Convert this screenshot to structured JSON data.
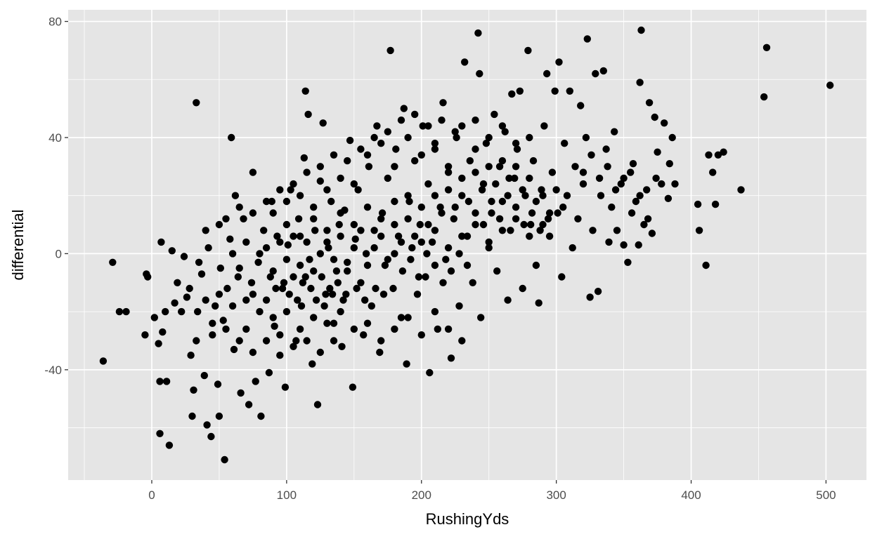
{
  "chart_data": {
    "type": "scatter",
    "title": "",
    "xlabel": "RushingYds",
    "ylabel": "differential",
    "xlim": [
      -62,
      530
    ],
    "ylim": [
      -78,
      84
    ],
    "x_ticks": [
      0,
      100,
      200,
      300,
      400,
      500
    ],
    "x_tick_labels": [
      "0",
      "100",
      "200",
      "300",
      "400",
      "500"
    ],
    "y_ticks": [
      -40,
      0,
      40,
      80
    ],
    "y_tick_labels": [
      "-40",
      "0",
      "40",
      "80"
    ],
    "grid": true,
    "legend": "none",
    "colors": {
      "panel": "#e5e5e5",
      "grid": "#ffffff",
      "point": "#000000",
      "tick_text": "#4d4d4d"
    },
    "points": [
      [
        -36,
        -37
      ],
      [
        -29,
        -3
      ],
      [
        -24,
        -20
      ],
      [
        -19,
        -20
      ],
      [
        -5,
        -28
      ],
      [
        -4,
        -7
      ],
      [
        -3,
        -8
      ],
      [
        2,
        -22
      ],
      [
        5,
        -31
      ],
      [
        6,
        -44
      ],
      [
        6,
        -62
      ],
      [
        7,
        4
      ],
      [
        8,
        -27
      ],
      [
        10,
        -20
      ],
      [
        11,
        -44
      ],
      [
        13,
        -66
      ],
      [
        15,
        1
      ],
      [
        17,
        -17
      ],
      [
        19,
        -10
      ],
      [
        22,
        -20
      ],
      [
        24,
        -1
      ],
      [
        26,
        -15
      ],
      [
        28,
        -12
      ],
      [
        29,
        -35
      ],
      [
        30,
        -56
      ],
      [
        31,
        -47
      ],
      [
        33,
        -30
      ],
      [
        34,
        -20
      ],
      [
        33,
        52
      ],
      [
        35,
        -3
      ],
      [
        37,
        -7
      ],
      [
        39,
        -42
      ],
      [
        41,
        -59
      ],
      [
        42,
        2
      ],
      [
        44,
        -63
      ],
      [
        45,
        -28
      ],
      [
        47,
        -18
      ],
      [
        49,
        -45
      ],
      [
        50,
        -56
      ],
      [
        51,
        -5
      ],
      [
        53,
        -23
      ],
      [
        54,
        -71
      ],
      [
        56,
        -12
      ],
      [
        58,
        5
      ],
      [
        59,
        40
      ],
      [
        61,
        -33
      ],
      [
        62,
        20
      ],
      [
        64,
        -8
      ],
      [
        66,
        -48
      ],
      [
        68,
        12
      ],
      [
        70,
        -26
      ],
      [
        72,
        -52
      ],
      [
        74,
        -10
      ],
      [
        75,
        28
      ],
      [
        77,
        -44
      ],
      [
        79,
        -3
      ],
      [
        81,
        -56
      ],
      [
        83,
        8
      ],
      [
        85,
        -16
      ],
      [
        87,
        -41
      ],
      [
        89,
        18
      ],
      [
        91,
        -25
      ],
      [
        93,
        6
      ],
      [
        95,
        -35
      ],
      [
        97,
        -12
      ],
      [
        99,
        -46
      ],
      [
        101,
        3
      ],
      [
        103,
        22
      ],
      [
        105,
        -8
      ],
      [
        107,
        -30
      ],
      [
        109,
        12
      ],
      [
        111,
        -18
      ],
      [
        113,
        33
      ],
      [
        114,
        56
      ],
      [
        116,
        48
      ],
      [
        117,
        -2
      ],
      [
        119,
        -38
      ],
      [
        121,
        8
      ],
      [
        123,
        -52
      ],
      [
        125,
        25
      ],
      [
        127,
        45
      ],
      [
        129,
        -14
      ],
      [
        131,
        2
      ],
      [
        133,
        18
      ],
      [
        135,
        -24
      ],
      [
        137,
        -6
      ],
      [
        139,
        10
      ],
      [
        141,
        -32
      ],
      [
        143,
        15
      ],
      [
        145,
        -3
      ],
      [
        147,
        39
      ],
      [
        149,
        -46
      ],
      [
        151,
        5
      ],
      [
        153,
        22
      ],
      [
        155,
        -10
      ],
      [
        157,
        -28
      ],
      [
        159,
        0
      ],
      [
        161,
        30
      ],
      [
        163,
        -18
      ],
      [
        165,
        8
      ],
      [
        167,
        44
      ],
      [
        169,
        -34
      ],
      [
        171,
        14
      ],
      [
        173,
        -4
      ],
      [
        175,
        26
      ],
      [
        177,
        70
      ],
      [
        179,
        -12
      ],
      [
        181,
        36
      ],
      [
        183,
        6
      ],
      [
        185,
        -22
      ],
      [
        187,
        50
      ],
      [
        189,
        -38
      ],
      [
        191,
        18
      ],
      [
        193,
        2
      ],
      [
        195,
        32
      ],
      [
        197,
        -14
      ],
      [
        199,
        10
      ],
      [
        201,
        44
      ],
      [
        203,
        -8
      ],
      [
        205,
        24
      ],
      [
        206,
        -41
      ],
      [
        208,
        4
      ],
      [
        210,
        36
      ],
      [
        212,
        -26
      ],
      [
        214,
        16
      ],
      [
        216,
        52
      ],
      [
        218,
        -2
      ],
      [
        220,
        28
      ],
      [
        222,
        -36
      ],
      [
        224,
        12
      ],
      [
        226,
        40
      ],
      [
        228,
        -18
      ],
      [
        230,
        20
      ],
      [
        232,
        66
      ],
      [
        234,
        6
      ],
      [
        236,
        32
      ],
      [
        238,
        -10
      ],
      [
        240,
        46
      ],
      [
        242,
        76
      ],
      [
        243,
        62
      ],
      [
        244,
        -22
      ],
      [
        246,
        24
      ],
      [
        248,
        38
      ],
      [
        250,
        2
      ],
      [
        252,
        14
      ],
      [
        254,
        48
      ],
      [
        256,
        -6
      ],
      [
        258,
        30
      ],
      [
        260,
        18
      ],
      [
        262,
        42
      ],
      [
        264,
        -16
      ],
      [
        266,
        8
      ],
      [
        267,
        55
      ],
      [
        269,
        26
      ],
      [
        271,
        36
      ],
      [
        273,
        56
      ],
      [
        275,
        -12
      ],
      [
        277,
        20
      ],
      [
        279,
        70
      ],
      [
        281,
        10
      ],
      [
        283,
        32
      ],
      [
        285,
        -4
      ],
      [
        287,
        -17
      ],
      [
        289,
        22
      ],
      [
        291,
        44
      ],
      [
        293,
        62
      ],
      [
        295,
        6
      ],
      [
        297,
        28
      ],
      [
        299,
        56
      ],
      [
        301,
        14
      ],
      [
        302,
        66
      ],
      [
        304,
        -8
      ],
      [
        306,
        38
      ],
      [
        308,
        20
      ],
      [
        310,
        56
      ],
      [
        312,
        2
      ],
      [
        314,
        30
      ],
      [
        316,
        12
      ],
      [
        318,
        51
      ],
      [
        320,
        24
      ],
      [
        322,
        40
      ],
      [
        323,
        74
      ],
      [
        325,
        -15
      ],
      [
        327,
        8
      ],
      [
        329,
        62
      ],
      [
        331,
        -13
      ],
      [
        333,
        20
      ],
      [
        335,
        63
      ],
      [
        337,
        36
      ],
      [
        339,
        4
      ],
      [
        341,
        16
      ],
      [
        343,
        42
      ],
      [
        345,
        8
      ],
      [
        348,
        24
      ],
      [
        350,
        3
      ],
      [
        353,
        -3
      ],
      [
        355,
        28
      ],
      [
        357,
        31
      ],
      [
        359,
        18
      ],
      [
        361,
        3
      ],
      [
        362,
        59
      ],
      [
        363,
        77
      ],
      [
        365,
        10
      ],
      [
        367,
        22
      ],
      [
        369,
        52
      ],
      [
        371,
        7
      ],
      [
        373,
        47
      ],
      [
        375,
        35
      ],
      [
        378,
        24
      ],
      [
        380,
        45
      ],
      [
        383,
        19
      ],
      [
        384,
        31
      ],
      [
        386,
        40
      ],
      [
        388,
        24
      ],
      [
        405,
        17
      ],
      [
        406,
        8
      ],
      [
        411,
        -4
      ],
      [
        413,
        34
      ],
      [
        416,
        28
      ],
      [
        418,
        17
      ],
      [
        420,
        34
      ],
      [
        424,
        35
      ],
      [
        437,
        22
      ],
      [
        454,
        54
      ],
      [
        456,
        71
      ],
      [
        503,
        58
      ],
      [
        60,
        0
      ],
      [
        65,
        -5
      ],
      [
        70,
        4
      ],
      [
        75,
        -14
      ],
      [
        80,
        0
      ],
      [
        85,
        2
      ],
      [
        90,
        -6
      ],
      [
        95,
        4
      ],
      [
        100,
        -2
      ],
      [
        105,
        6
      ],
      [
        110,
        -4
      ],
      [
        115,
        4
      ],
      [
        120,
        -6
      ],
      [
        125,
        0
      ],
      [
        130,
        4
      ],
      [
        135,
        -2
      ],
      [
        140,
        6
      ],
      [
        145,
        -6
      ],
      [
        150,
        2
      ],
      [
        155,
        8
      ],
      [
        160,
        -4
      ],
      [
        165,
        2
      ],
      [
        170,
        6
      ],
      [
        175,
        -2
      ],
      [
        180,
        10
      ],
      [
        185,
        4
      ],
      [
        190,
        12
      ],
      [
        195,
        6
      ],
      [
        200,
        16
      ],
      [
        205,
        10
      ],
      [
        210,
        20
      ],
      [
        215,
        14
      ],
      [
        220,
        22
      ],
      [
        225,
        16
      ],
      [
        230,
        26
      ],
      [
        235,
        18
      ],
      [
        240,
        28
      ],
      [
        245,
        22
      ],
      [
        250,
        30
      ],
      [
        255,
        24
      ],
      [
        260,
        32
      ],
      [
        265,
        26
      ],
      [
        270,
        30
      ],
      [
        275,
        22
      ],
      [
        280,
        26
      ],
      [
        285,
        18
      ],
      [
        290,
        20
      ],
      [
        295,
        14
      ],
      [
        300,
        22
      ],
      [
        305,
        16
      ],
      [
        90,
        14
      ],
      [
        100,
        18
      ],
      [
        110,
        20
      ],
      [
        120,
        16
      ],
      [
        130,
        22
      ],
      [
        140,
        26
      ],
      [
        150,
        24
      ],
      [
        160,
        34
      ],
      [
        170,
        38
      ],
      [
        180,
        30
      ],
      [
        190,
        40
      ],
      [
        200,
        34
      ],
      [
        210,
        38
      ],
      [
        220,
        30
      ],
      [
        230,
        44
      ],
      [
        240,
        36
      ],
      [
        250,
        40
      ],
      [
        260,
        44
      ],
      [
        270,
        38
      ],
      [
        280,
        40
      ],
      [
        40,
        -16
      ],
      [
        50,
        -14
      ],
      [
        60,
        -18
      ],
      [
        70,
        -16
      ],
      [
        80,
        -20
      ],
      [
        90,
        -22
      ],
      [
        100,
        -20
      ],
      [
        110,
        -26
      ],
      [
        120,
        -22
      ],
      [
        130,
        -24
      ],
      [
        140,
        -20
      ],
      [
        150,
        -26
      ],
      [
        160,
        -24
      ],
      [
        170,
        -30
      ],
      [
        180,
        -26
      ],
      [
        190,
        -22
      ],
      [
        200,
        -28
      ],
      [
        210,
        -20
      ],
      [
        220,
        -26
      ],
      [
        230,
        -30
      ],
      [
        45,
        -24
      ],
      [
        55,
        -26
      ],
      [
        65,
        -30
      ],
      [
        75,
        -34
      ],
      [
        85,
        -30
      ],
      [
        95,
        -28
      ],
      [
        105,
        -32
      ],
      [
        115,
        -30
      ],
      [
        125,
        -34
      ],
      [
        135,
        -30
      ],
      [
        40,
        8
      ],
      [
        50,
        10
      ],
      [
        55,
        12
      ],
      [
        65,
        16
      ],
      [
        75,
        14
      ],
      [
        85,
        18
      ],
      [
        95,
        22
      ],
      [
        105,
        24
      ],
      [
        115,
        28
      ],
      [
        125,
        30
      ],
      [
        135,
        34
      ],
      [
        145,
        32
      ],
      [
        155,
        36
      ],
      [
        165,
        40
      ],
      [
        175,
        42
      ],
      [
        185,
        46
      ],
      [
        195,
        48
      ],
      [
        205,
        44
      ],
      [
        215,
        46
      ],
      [
        225,
        42
      ],
      [
        100,
        10
      ],
      [
        110,
        6
      ],
      [
        120,
        12
      ],
      [
        130,
        8
      ],
      [
        140,
        14
      ],
      [
        150,
        10
      ],
      [
        160,
        16
      ],
      [
        170,
        12
      ],
      [
        180,
        18
      ],
      [
        190,
        20
      ],
      [
        200,
        4
      ],
      [
        210,
        8
      ],
      [
        220,
        2
      ],
      [
        230,
        6
      ],
      [
        240,
        10
      ],
      [
        250,
        4
      ],
      [
        260,
        8
      ],
      [
        270,
        12
      ],
      [
        280,
        6
      ],
      [
        290,
        10
      ],
      [
        112,
        -10
      ],
      [
        118,
        -12
      ],
      [
        126,
        -8
      ],
      [
        132,
        -12
      ],
      [
        138,
        -10
      ],
      [
        144,
        -14
      ],
      [
        152,
        -12
      ],
      [
        158,
        -16
      ],
      [
        166,
        -12
      ],
      [
        172,
        -14
      ],
      [
        88,
        -8
      ],
      [
        92,
        -12
      ],
      [
        98,
        -10
      ],
      [
        102,
        -14
      ],
      [
        108,
        -16
      ],
      [
        114,
        -8
      ],
      [
        122,
        -16
      ],
      [
        128,
        -18
      ],
      [
        134,
        -14
      ],
      [
        142,
        -16
      ],
      [
        180,
        0
      ],
      [
        186,
        -6
      ],
      [
        192,
        -2
      ],
      [
        198,
        -8
      ],
      [
        204,
        0
      ],
      [
        210,
        -4
      ],
      [
        216,
        -10
      ],
      [
        222,
        -6
      ],
      [
        228,
        0
      ],
      [
        234,
        -4
      ],
      [
        240,
        14
      ],
      [
        246,
        10
      ],
      [
        252,
        18
      ],
      [
        258,
        12
      ],
      [
        264,
        20
      ],
      [
        270,
        16
      ],
      [
        276,
        10
      ],
      [
        282,
        14
      ],
      [
        288,
        8
      ],
      [
        294,
        12
      ],
      [
        320,
        28
      ],
      [
        326,
        34
      ],
      [
        332,
        26
      ],
      [
        338,
        30
      ],
      [
        344,
        22
      ],
      [
        350,
        26
      ],
      [
        356,
        14
      ],
      [
        362,
        20
      ],
      [
        368,
        12
      ],
      [
        374,
        26
      ]
    ]
  }
}
